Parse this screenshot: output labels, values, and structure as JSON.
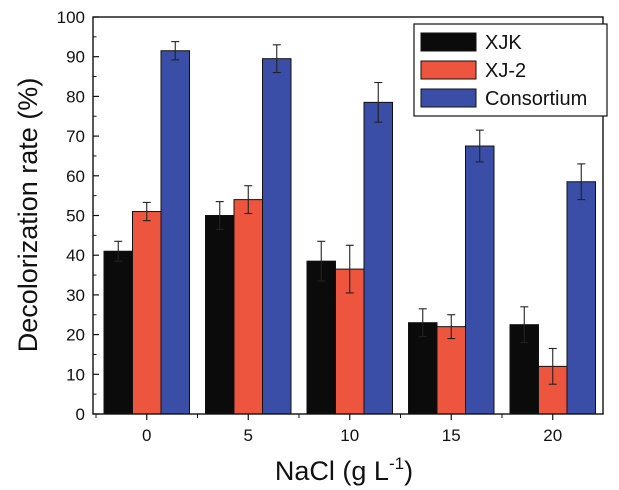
{
  "chart_data": {
    "type": "bar",
    "xlabel": "NaCl (g L",
    "xlabel_sup": "-1",
    "xlabel_end": ")",
    "ylabel": "Decolorization rate (%)",
    "categories": [
      "0",
      "5",
      "10",
      "15",
      "20"
    ],
    "ylim": [
      0,
      100
    ],
    "yticks": [
      "0",
      "10",
      "20",
      "30",
      "40",
      "50",
      "60",
      "70",
      "80",
      "90",
      "100"
    ],
    "legend_position": "top-right",
    "grid": false,
    "series": [
      {
        "name": "XJK",
        "color": "#0b0b0b",
        "values": [
          41,
          50,
          38.5,
          23,
          22.5
        ],
        "errors": [
          2.5,
          3.5,
          5,
          3.5,
          4.5
        ]
      },
      {
        "name": "XJ-2",
        "color": "#ee553f",
        "values": [
          51,
          54,
          36.5,
          22,
          12
        ],
        "errors": [
          2.3,
          3.5,
          6,
          3,
          4.5
        ]
      },
      {
        "name": "Consortium",
        "color": "#3a4ea8",
        "values": [
          91.5,
          89.5,
          78.5,
          67.5,
          58.5
        ],
        "errors": [
          2.3,
          3.5,
          5,
          4,
          4.5
        ]
      }
    ]
  }
}
